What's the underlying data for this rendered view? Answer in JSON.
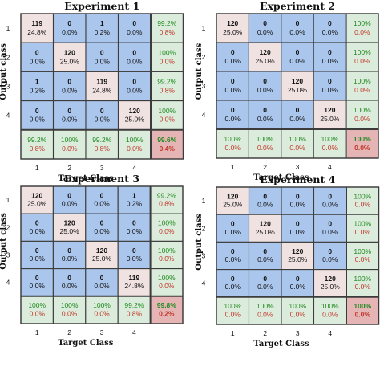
{
  "colors": {
    "diagonal": "#f1e2e2",
    "off_diagonal": "#abc6ec",
    "summary": "#dcecdc",
    "total": "#e5b5b5",
    "grid": "#3c3c3c",
    "correct_text": "#1f8a1f",
    "error_text": "#c0392b"
  },
  "chart_data": [
    {
      "type": "heatmap",
      "title": "Experiment 1",
      "xlabel": "Target Class",
      "ylabel": "Output class",
      "x_ticks": [
        "1",
        "2",
        "3",
        "4"
      ],
      "y_ticks": [
        "1",
        "2",
        "3",
        "4"
      ],
      "cells": [
        [
          {
            "count": "119",
            "pct": "24.8%"
          },
          {
            "count": "0",
            "pct": "0.0%"
          },
          {
            "count": "1",
            "pct": "0.2%"
          },
          {
            "count": "0",
            "pct": "0.0%"
          }
        ],
        [
          {
            "count": "0",
            "pct": "0.0%"
          },
          {
            "count": "120",
            "pct": "25.0%"
          },
          {
            "count": "0",
            "pct": "0.0%"
          },
          {
            "count": "0",
            "pct": "0.0%"
          }
        ],
        [
          {
            "count": "1",
            "pct": "0.2%"
          },
          {
            "count": "0",
            "pct": "0.0%"
          },
          {
            "count": "119",
            "pct": "24.8%"
          },
          {
            "count": "0",
            "pct": "0.0%"
          }
        ],
        [
          {
            "count": "0",
            "pct": "0.0%"
          },
          {
            "count": "0",
            "pct": "0.0%"
          },
          {
            "count": "0",
            "pct": "0.0%"
          },
          {
            "count": "120",
            "pct": "25.0%"
          }
        ]
      ],
      "row_summary": [
        {
          "correct": "99.2%",
          "error": "0.8%"
        },
        {
          "correct": "100%",
          "error": "0.0%"
        },
        {
          "correct": "99.2%",
          "error": "0.8%"
        },
        {
          "correct": "100%",
          "error": "0.0%"
        }
      ],
      "col_summary": [
        {
          "correct": "99.2%",
          "error": "0.8%"
        },
        {
          "correct": "100%",
          "error": "0.0%"
        },
        {
          "correct": "99.2%",
          "error": "0.8%"
        },
        {
          "correct": "100%",
          "error": "0.0%"
        }
      ],
      "total": {
        "correct": "99.6%",
        "error": "0.4%"
      }
    },
    {
      "type": "heatmap",
      "title": "Experiment 2",
      "xlabel": "Target Class",
      "ylabel": "Output class",
      "x_ticks": [
        "1",
        "2",
        "3",
        "4"
      ],
      "y_ticks": [
        "1",
        "2",
        "3",
        "4"
      ],
      "cells": [
        [
          {
            "count": "120",
            "pct": "25.0%"
          },
          {
            "count": "0",
            "pct": "0.0%"
          },
          {
            "count": "0",
            "pct": "0.0%"
          },
          {
            "count": "0",
            "pct": "0.0%"
          }
        ],
        [
          {
            "count": "0",
            "pct": "0.0%"
          },
          {
            "count": "120",
            "pct": "25.0%"
          },
          {
            "count": "0",
            "pct": "0.0%"
          },
          {
            "count": "0",
            "pct": "0.0%"
          }
        ],
        [
          {
            "count": "0",
            "pct": "0.0%"
          },
          {
            "count": "0",
            "pct": "0.0%"
          },
          {
            "count": "120",
            "pct": "25.0%"
          },
          {
            "count": "0",
            "pct": "0.0%"
          }
        ],
        [
          {
            "count": "0",
            "pct": "0.0%"
          },
          {
            "count": "0",
            "pct": "0.0%"
          },
          {
            "count": "0",
            "pct": "0.0%"
          },
          {
            "count": "120",
            "pct": "25.0%"
          }
        ]
      ],
      "row_summary": [
        {
          "correct": "100%",
          "error": "0.0%"
        },
        {
          "correct": "100%",
          "error": "0.0%"
        },
        {
          "correct": "100%",
          "error": "0.0%"
        },
        {
          "correct": "100%",
          "error": "0.0%"
        }
      ],
      "col_summary": [
        {
          "correct": "100%",
          "error": "0.0%"
        },
        {
          "correct": "100%",
          "error": "0.0%"
        },
        {
          "correct": "100%",
          "error": "0.0%"
        },
        {
          "correct": "100%",
          "error": "0.0%"
        }
      ],
      "total": {
        "correct": "100%",
        "error": "0.0%"
      }
    },
    {
      "type": "heatmap",
      "title": "Experiment 3",
      "xlabel": "Target Class",
      "ylabel": "Output class",
      "x_ticks": [
        "1",
        "2",
        "3",
        "4"
      ],
      "y_ticks": [
        "1",
        "2",
        "3",
        "4"
      ],
      "cells": [
        [
          {
            "count": "120",
            "pct": "25.0%"
          },
          {
            "count": "0",
            "pct": "0.0%"
          },
          {
            "count": "0",
            "pct": "0.0%"
          },
          {
            "count": "1",
            "pct": "0.2%"
          }
        ],
        [
          {
            "count": "0",
            "pct": "0.0%"
          },
          {
            "count": "120",
            "pct": "25.0%"
          },
          {
            "count": "0",
            "pct": "0.0%"
          },
          {
            "count": "0",
            "pct": "0.0%"
          }
        ],
        [
          {
            "count": "0",
            "pct": "0.0%"
          },
          {
            "count": "0",
            "pct": "0.0%"
          },
          {
            "count": "120",
            "pct": "25.0%"
          },
          {
            "count": "0",
            "pct": "0.0%"
          }
        ],
        [
          {
            "count": "0",
            "pct": "0.0%"
          },
          {
            "count": "0",
            "pct": "0.0%"
          },
          {
            "count": "0",
            "pct": "0.0%"
          },
          {
            "count": "119",
            "pct": "24.8%"
          }
        ]
      ],
      "row_summary": [
        {
          "correct": "99.2%",
          "error": "0.8%"
        },
        {
          "correct": "100%",
          "error": "0.0%"
        },
        {
          "correct": "100%",
          "error": "0.0%"
        },
        {
          "correct": "100%",
          "error": "0.0%"
        }
      ],
      "col_summary": [
        {
          "correct": "100%",
          "error": "0.0%"
        },
        {
          "correct": "100%",
          "error": "0.0%"
        },
        {
          "correct": "100%",
          "error": "0.0%"
        },
        {
          "correct": "99.2%",
          "error": "0.8%"
        }
      ],
      "total": {
        "correct": "99.8%",
        "error": "0.2%"
      }
    },
    {
      "type": "heatmap",
      "title": "Experiment 4",
      "xlabel": "Target Class",
      "ylabel": "Output class",
      "x_ticks": [
        "1",
        "2",
        "3",
        "4"
      ],
      "y_ticks": [
        "1",
        "2",
        "3",
        "4"
      ],
      "cells": [
        [
          {
            "count": "120",
            "pct": "25.0%"
          },
          {
            "count": "0",
            "pct": "0.0%"
          },
          {
            "count": "0",
            "pct": "0.0%"
          },
          {
            "count": "0",
            "pct": "0.0%"
          }
        ],
        [
          {
            "count": "0",
            "pct": "0.0%"
          },
          {
            "count": "120",
            "pct": "25.0%"
          },
          {
            "count": "0",
            "pct": "0.0%"
          },
          {
            "count": "0",
            "pct": "0.0%"
          }
        ],
        [
          {
            "count": "0",
            "pct": "0.0%"
          },
          {
            "count": "0",
            "pct": "0.0%"
          },
          {
            "count": "120",
            "pct": "25.0%"
          },
          {
            "count": "0",
            "pct": "0.0%"
          }
        ],
        [
          {
            "count": "0",
            "pct": "0.0%"
          },
          {
            "count": "0",
            "pct": "0.0%"
          },
          {
            "count": "0",
            "pct": "0.0%"
          },
          {
            "count": "120",
            "pct": "25.0%"
          }
        ]
      ],
      "row_summary": [
        {
          "correct": "100%",
          "error": "0.0%"
        },
        {
          "correct": "100%",
          "error": "0.0%"
        },
        {
          "correct": "100%",
          "error": "0.0%"
        },
        {
          "correct": "100%",
          "error": "0.0%"
        }
      ],
      "col_summary": [
        {
          "correct": "100%",
          "error": "0.0%"
        },
        {
          "correct": "100%",
          "error": "0.0%"
        },
        {
          "correct": "100%",
          "error": "0.0%"
        },
        {
          "correct": "100%",
          "error": "0.0%"
        }
      ],
      "total": {
        "correct": "100%",
        "error": "0.0%"
      }
    }
  ]
}
